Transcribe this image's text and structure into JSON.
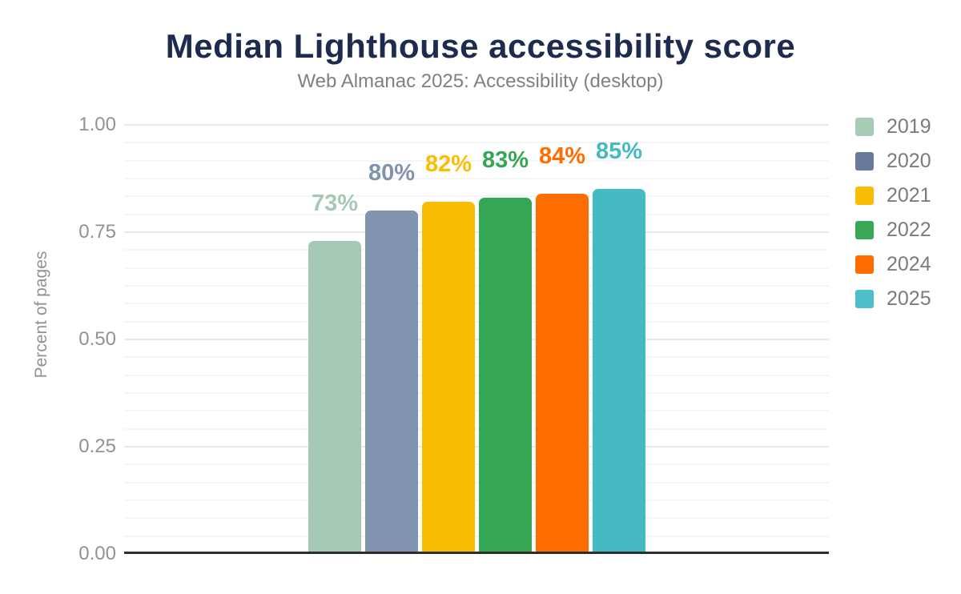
{
  "chart_data": {
    "type": "bar",
    "title": "Median Lighthouse accessibility score",
    "subtitle": "Web Almanac 2025: Accessibility (desktop)",
    "ylabel": "Percent of pages",
    "xlabel": "",
    "ylim": [
      0,
      1
    ],
    "ytick_values": [
      0,
      0.25,
      0.5,
      0.75,
      1
    ],
    "ytick_labels": [
      "0.00",
      "0.25",
      "0.50",
      "0.75",
      "1.00"
    ],
    "y_minor_divisions_per_major": 6,
    "grid": true,
    "legend_position": "right",
    "categories": [
      "2019",
      "2020",
      "2021",
      "2022",
      "2024",
      "2025"
    ],
    "values": [
      0.73,
      0.8,
      0.82,
      0.83,
      0.84,
      0.85
    ],
    "bar_labels": [
      "73%",
      "80%",
      "82%",
      "83%",
      "84%",
      "85%"
    ],
    "series": [
      {
        "name": "2019",
        "value": 0.73,
        "label": "73%",
        "color": "#a6c9b6",
        "legend_color": "#a8cbb5"
      },
      {
        "name": "2020",
        "value": 0.8,
        "label": "80%",
        "color": "#8093af",
        "legend_color": "#68799c"
      },
      {
        "name": "2021",
        "value": 0.82,
        "label": "82%",
        "color": "#fbbc04",
        "legend_color": "#fbbc04"
      },
      {
        "name": "2022",
        "value": 0.83,
        "label": "83%",
        "color": "#35a754",
        "legend_color": "#3aa757"
      },
      {
        "name": "2024",
        "value": 0.84,
        "label": "84%",
        "color": "#ff6d00",
        "legend_color": "#ff6d00"
      },
      {
        "name": "2025",
        "value": 0.85,
        "label": "85%",
        "color": "#46bac4",
        "legend_color": "#4cbfc9"
      }
    ]
  },
  "colors": {
    "title": "#1d2b4f",
    "subtitle": "#7e8084",
    "tick_label": "#8f9397",
    "axis_title": "#8f9397",
    "axis_line": "#2d2d2d",
    "grid_major": "#e9e9eb",
    "grid_minor": "#f5f5f7",
    "legend_label": "#7b7b7b",
    "background": "#ffffff"
  }
}
